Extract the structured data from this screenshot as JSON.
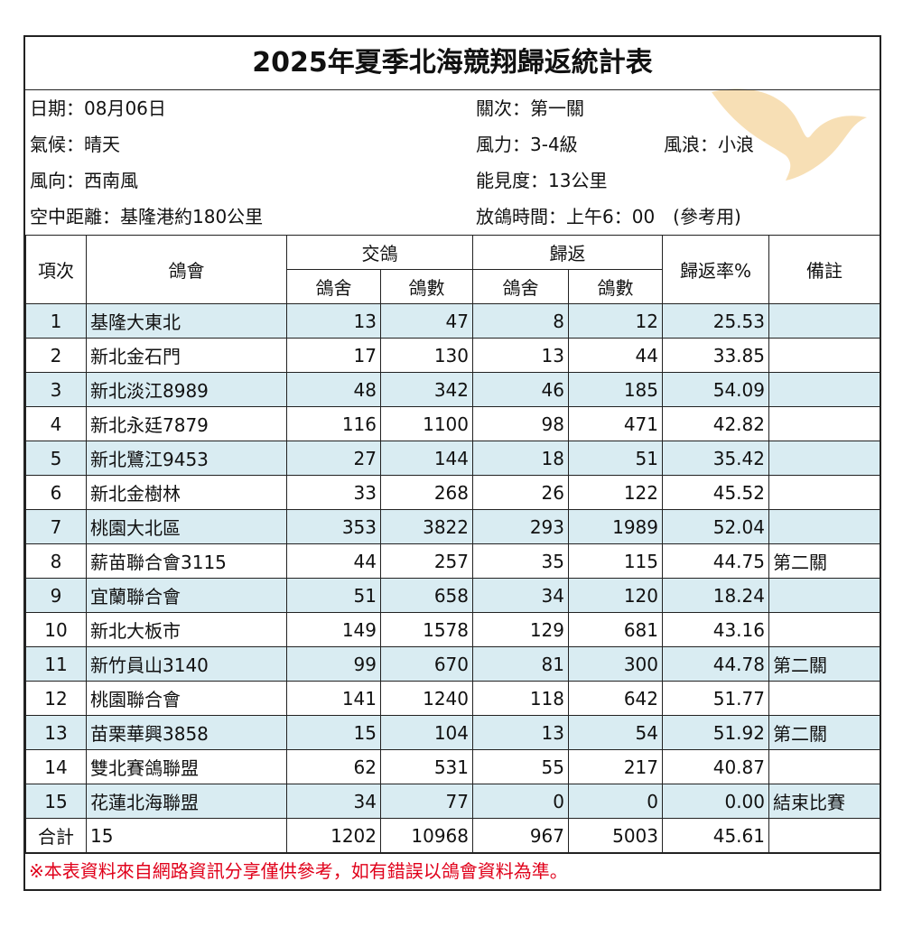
{
  "title": "2025年夏季北海競翔歸返統計表",
  "info": [
    [
      "日期：08月06日",
      "關次：第一關"
    ],
    [
      "氣候：晴天",
      "風力：3-4級",
      "風浪：小浪"
    ],
    [
      "風向：西南風",
      "能見度：13公里"
    ],
    [
      "空中距離：基隆港約180公里",
      "放鴿時間：上午6：00　(參考用)"
    ]
  ],
  "table": {
    "header": [
      "項次",
      "鴿會",
      "交鴿",
      "歸返",
      "歸返率%",
      "備註"
    ],
    "subheader": [
      "鴿舍",
      "鴿數",
      "鴿舍",
      "鴿數"
    ],
    "rows": [
      [
        "1",
        "基隆大東北",
        "13",
        "47",
        "8",
        "12",
        "25.53"
      ],
      [
        "2",
        "新北金石門",
        "17",
        "130",
        "13",
        "44",
        "33.85"
      ],
      [
        "3",
        "新北淡江8989",
        "48",
        "342",
        "46",
        "185",
        "54.09"
      ],
      [
        "4",
        "新北永廷7879",
        "116",
        "1100",
        "98",
        "471",
        "42.82"
      ],
      [
        "5",
        "新北鷺江9453",
        "27",
        "144",
        "18",
        "51",
        "35.42"
      ],
      [
        "6",
        "新北金樹林",
        "33",
        "268",
        "26",
        "122",
        "45.52"
      ],
      [
        "7",
        "桃園大北區",
        "353",
        "3822",
        "293",
        "1989",
        "52.04"
      ],
      [
        "8",
        "薪苗聯合會3115",
        "44",
        "257",
        "35",
        "115",
        "44.75",
        "第二關"
      ],
      [
        "9",
        "宜蘭聯合會",
        "51",
        "658",
        "34",
        "120",
        "18.24"
      ],
      [
        "10",
        "新北大板市",
        "149",
        "1578",
        "129",
        "681",
        "43.16"
      ],
      [
        "11",
        "新竹員山3140",
        "99",
        "670",
        "81",
        "300",
        "44.78",
        "第二關"
      ],
      [
        "12",
        "桃園聯合會",
        "141",
        "1240",
        "118",
        "642",
        "51.77"
      ],
      [
        "13",
        "苗栗華興3858",
        "15",
        "104",
        "13",
        "54",
        "51.92",
        "第二關"
      ],
      [
        "14",
        "雙北賽鴿聯盟",
        "62",
        "531",
        "55",
        "217",
        "40.87"
      ],
      [
        "15",
        "花蓮北海聯盟",
        "34",
        "77",
        "0",
        "0",
        "0.00",
        "結束比賽"
      ]
    ],
    "total": [
      "合計",
      "15",
      "1202",
      "10968",
      "967",
      "5003",
      "45.61"
    ]
  },
  "footer": "※本表資料來自網路資訊分享僅供參考，如有錯誤以鴿會資料為準。"
}
